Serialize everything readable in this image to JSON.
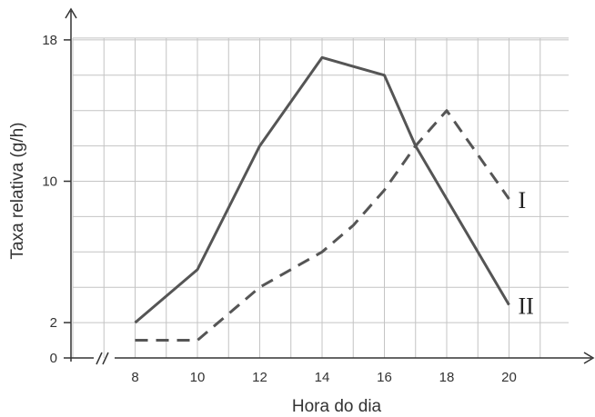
{
  "chart_data": {
    "type": "line",
    "xlabel": "Hora do dia",
    "ylabel": "Taxa relativa (g/h)",
    "x_ticks": [
      "8",
      "10",
      "12",
      "14",
      "16",
      "18",
      "20"
    ],
    "y_ticks": [
      "0",
      "2",
      "10",
      "18"
    ],
    "xlim": [
      6,
      22
    ],
    "ylim": [
      0,
      20
    ],
    "grid": true,
    "axis_break_mark": "//",
    "series": [
      {
        "name": "I",
        "style": "dashed",
        "x": [
          8,
          10,
          12,
          14,
          15,
          16,
          17,
          18,
          20
        ],
        "y": [
          1,
          1,
          4,
          6,
          7.5,
          9.5,
          12,
          14,
          9
        ]
      },
      {
        "name": "II",
        "style": "solid",
        "x": [
          8,
          10,
          12,
          14,
          16,
          17,
          18,
          20
        ],
        "y": [
          2,
          5,
          12,
          17,
          16,
          12,
          9,
          3
        ]
      }
    ],
    "line_color": "#555555",
    "grid_color": "#c4c4c4",
    "axis_color": "#333333"
  }
}
